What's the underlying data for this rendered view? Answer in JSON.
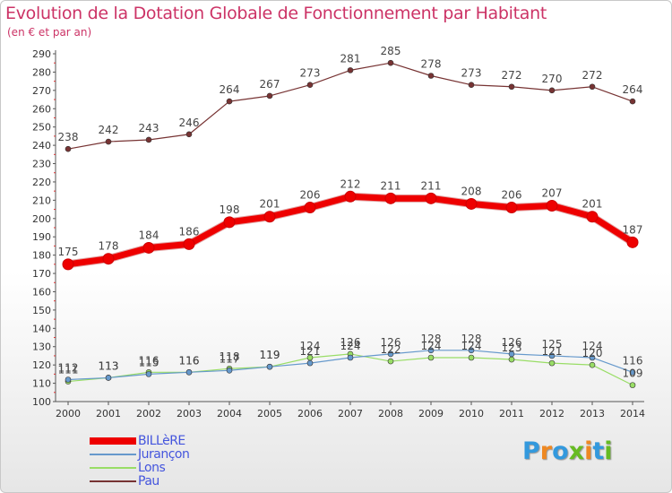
{
  "chart_data": {
    "type": "line",
    "title": "Evolution de la Dotation Globale de Fonctionnement par Habitant",
    "subtitle": "(en € et par an)",
    "x": [
      "2000",
      "2001",
      "2002",
      "2003",
      "2004",
      "2005",
      "2006",
      "2007",
      "2008",
      "2009",
      "2010",
      "2011",
      "2012",
      "2013",
      "2014"
    ],
    "ylim": [
      100,
      290
    ],
    "yticks": [
      100,
      110,
      120,
      130,
      140,
      150,
      160,
      170,
      180,
      190,
      200,
      210,
      220,
      230,
      240,
      250,
      260,
      270,
      280,
      290
    ],
    "grid": false,
    "legend_position": "bottom-left",
    "series": [
      {
        "name": "BILLèRE",
        "color": "#ee0000",
        "values": [
          175,
          178,
          184,
          186,
          198,
          201,
          206,
          212,
          211,
          211,
          208,
          206,
          207,
          201,
          187
        ],
        "labels": [
          "175",
          "178",
          "184",
          "186",
          "198",
          "201",
          "206",
          "212",
          "211",
          "211",
          "208",
          "206",
          "207",
          "201",
          "187"
        ]
      },
      {
        "name": "Jurançon",
        "color": "#6699cc",
        "values": [
          112,
          113,
          115,
          116,
          117,
          119,
          121,
          124,
          126,
          128,
          128,
          126,
          125,
          124,
          116
        ],
        "labels": [
          "112",
          "113",
          "115",
          "116",
          "117",
          "119",
          "121",
          "124",
          "126",
          "128",
          "128",
          "126",
          "125",
          "124",
          "116"
        ]
      },
      {
        "name": "Lons",
        "color": "#99dd66",
        "values": [
          111,
          113,
          116,
          116,
          118,
          119,
          124,
          126,
          122,
          124,
          124,
          123,
          121,
          120,
          109
        ],
        "labels": [
          "111",
          "113",
          "116",
          "116",
          "118",
          "119",
          "124",
          "126",
          "122",
          "124",
          "124",
          "123",
          "121",
          "120",
          "109"
        ]
      },
      {
        "name": "Pau",
        "color": "#773333",
        "values": [
          238,
          242,
          243,
          246,
          264,
          267,
          273,
          281,
          285,
          278,
          273,
          272,
          270,
          272,
          264
        ],
        "labels": [
          "238",
          "242",
          "243",
          "246",
          "264",
          "267",
          "273",
          "281",
          "285",
          "278",
          "273",
          "272",
          "270",
          "272",
          "264"
        ]
      }
    ]
  },
  "logo": {
    "letters": [
      "P",
      "r",
      "o",
      "x",
      "i",
      "t",
      "i"
    ],
    "colors": [
      "#3399dd",
      "#ee8822",
      "#3399dd",
      "#66bb22",
      "#ee8822",
      "#3399dd",
      "#66bb22"
    ]
  }
}
